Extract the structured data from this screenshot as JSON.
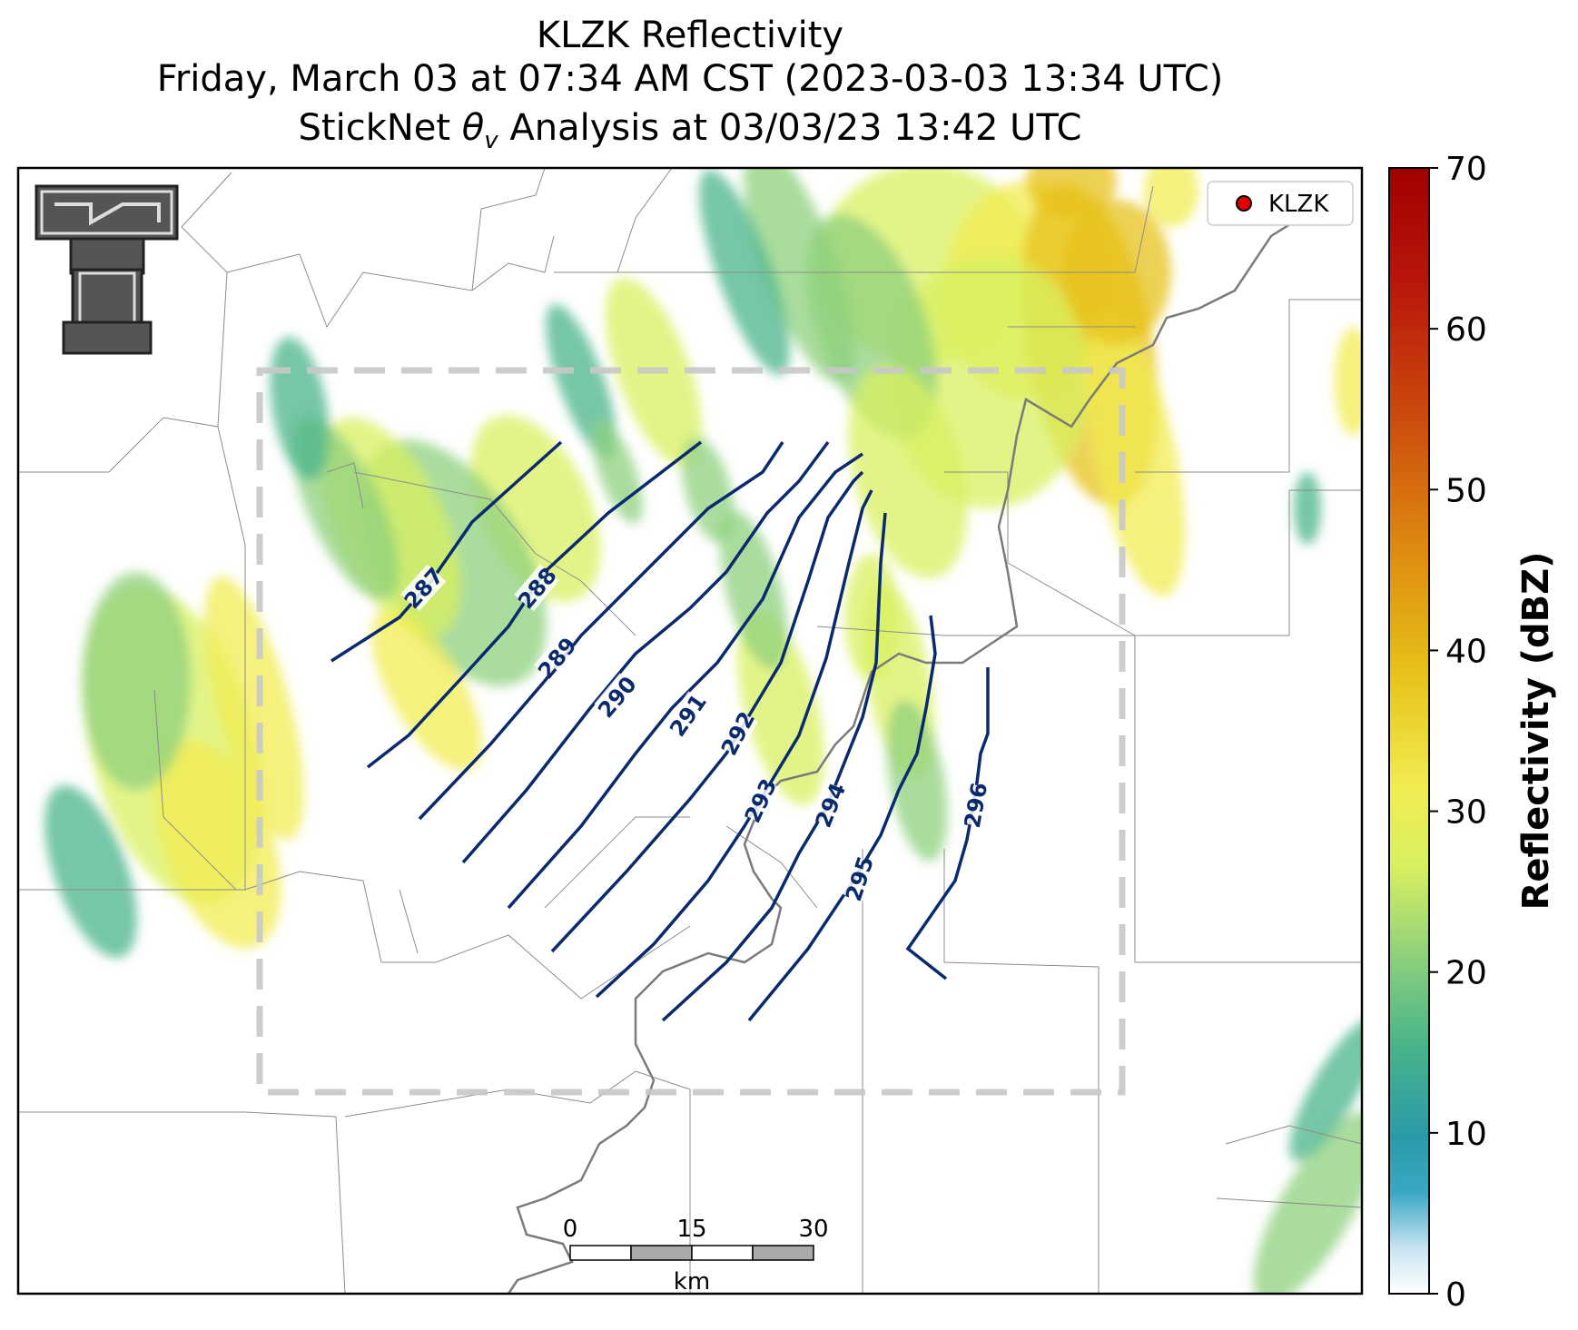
{
  "title": {
    "line1": "KLZK Reflectivity",
    "line2": "Friday, March 03 at 07:34 AM CST (2023-03-03 13:34 UTC)",
    "line3_pre": "StickNet ",
    "line3_symbol": "θ",
    "line3_sub": "v",
    "line3_post": " Analysis at 03/03/23 13:42 UTC"
  },
  "legend": {
    "label": "KLZK",
    "marker_color": "#e00000"
  },
  "colorbar": {
    "label": "Reflectivity (dBZ)",
    "min": 0,
    "max": 70,
    "ticks": [
      "0",
      "10",
      "20",
      "30",
      "40",
      "50",
      "60",
      "70"
    ]
  },
  "contours": [
    {
      "value": "287"
    },
    {
      "value": "288"
    },
    {
      "value": "289"
    },
    {
      "value": "290"
    },
    {
      "value": "291"
    },
    {
      "value": "292"
    },
    {
      "value": "293"
    },
    {
      "value": "294"
    },
    {
      "value": "295"
    },
    {
      "value": "296"
    }
  ],
  "scalebar": {
    "ticks": [
      "0",
      "15",
      "30"
    ],
    "unit": "km"
  },
  "colors": {
    "contour": "#0a2a6e",
    "domain_box": "#c8c8c8"
  }
}
